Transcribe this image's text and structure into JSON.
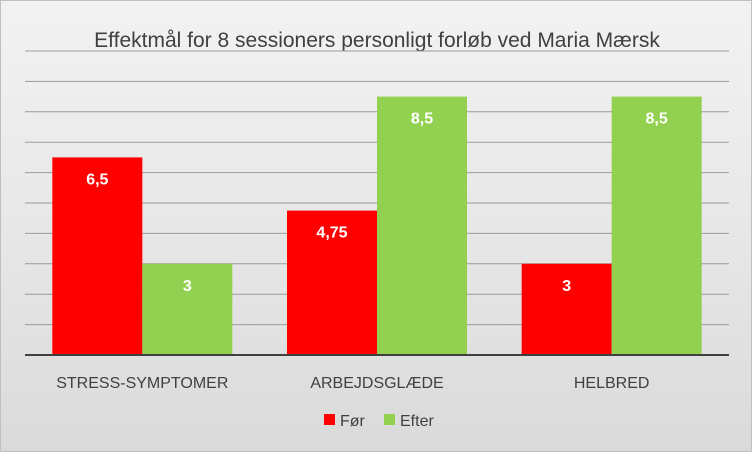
{
  "chart_data": {
    "type": "bar",
    "title": "Effektmål for 8 sessioners personligt forløb ved Maria Mærsk",
    "categories": [
      "STRESS-SYMPTOMER",
      "ARBEJDSGLÆDE",
      "HELBRED"
    ],
    "series": [
      {
        "name": "Før",
        "values": [
          6.5,
          4.75,
          3
        ],
        "labels": [
          "6,5",
          "4,75",
          "3"
        ],
        "color": "#ff0000"
      },
      {
        "name": "Efter",
        "values": [
          3,
          8.5,
          8.5
        ],
        "labels": [
          "3",
          "8,5",
          "8,5"
        ],
        "color": "#92d050"
      }
    ],
    "ylim": [
      0,
      10
    ],
    "grid": true,
    "legend": "bottom"
  }
}
